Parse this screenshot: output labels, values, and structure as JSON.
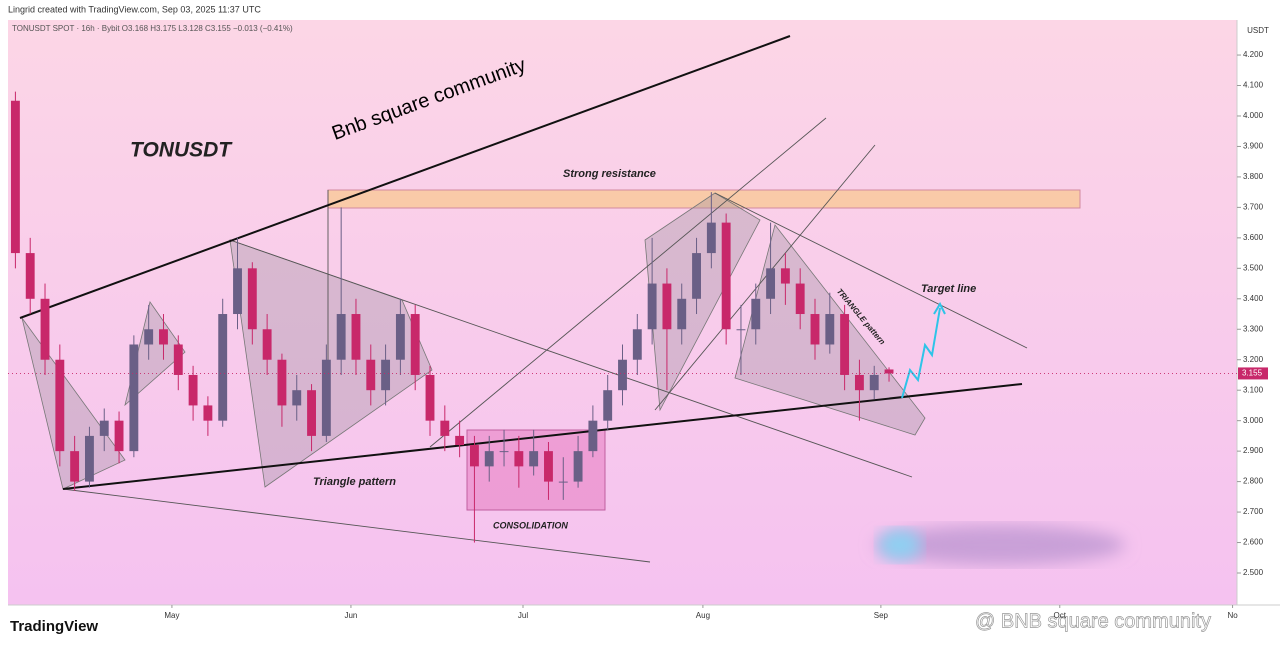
{
  "header": "Lingrid created with TradingView.com, Sep 03, 2025 11:37 UTC",
  "legend": "TONUSDT SPOT · 16h · Bybit  O3.168  H3.175  L3.128  C3.155  −0.013 (−0.41%)",
  "currency": "USDT",
  "logo": "TradingView",
  "watermark": "@ BNB square community",
  "chart_data": {
    "type": "candlestick",
    "title": "TONUSDT",
    "annotations": {
      "watermark": "Bnb square community",
      "resistance": "Strong resistance",
      "triangle": "Triangle pattern",
      "consolidation": "CONSOLIDATION",
      "triangle2": "TRIANGLE pattern",
      "target": "Target line"
    },
    "categories": [
      null,
      null,
      null,
      null,
      null,
      null,
      null,
      null,
      null,
      null,
      null,
      null,
      null,
      null,
      null,
      null,
      null,
      null,
      null,
      null,
      null,
      null,
      null,
      null,
      null,
      null,
      null,
      null,
      null,
      null,
      null,
      null,
      null,
      null,
      null,
      null,
      null,
      null,
      null,
      null,
      null,
      null,
      null,
      null,
      null,
      null,
      null,
      null,
      null,
      null,
      null,
      null,
      null,
      null,
      null,
      null,
      null,
      null,
      null,
      null
    ],
    "candles": [
      [
        4.05,
        4.08,
        3.5,
        3.55
      ],
      [
        3.55,
        3.6,
        3.35,
        3.4
      ],
      [
        3.4,
        3.45,
        3.15,
        3.2
      ],
      [
        3.2,
        3.25,
        2.85,
        2.9
      ],
      [
        2.9,
        2.95,
        2.77,
        2.8
      ],
      [
        2.8,
        2.98,
        2.78,
        2.95
      ],
      [
        2.95,
        3.04,
        2.9,
        3.0
      ],
      [
        3.0,
        3.03,
        2.86,
        2.9
      ],
      [
        2.9,
        3.28,
        2.88,
        3.25
      ],
      [
        3.25,
        3.38,
        3.2,
        3.3
      ],
      [
        3.3,
        3.35,
        3.2,
        3.25
      ],
      [
        3.25,
        3.28,
        3.1,
        3.15
      ],
      [
        3.15,
        3.18,
        3.0,
        3.05
      ],
      [
        3.05,
        3.08,
        2.95,
        3.0
      ],
      [
        3.0,
        3.4,
        2.98,
        3.35
      ],
      [
        3.35,
        3.6,
        3.3,
        3.5
      ],
      [
        3.5,
        3.52,
        3.25,
        3.3
      ],
      [
        3.3,
        3.35,
        3.15,
        3.2
      ],
      [
        3.2,
        3.22,
        2.98,
        3.05
      ],
      [
        3.05,
        3.15,
        3.0,
        3.1
      ],
      [
        3.1,
        3.12,
        2.9,
        2.95
      ],
      [
        2.95,
        3.25,
        2.93,
        3.2
      ],
      [
        3.2,
        3.7,
        3.15,
        3.35
      ],
      [
        3.35,
        3.4,
        3.15,
        3.2
      ],
      [
        3.2,
        3.25,
        3.05,
        3.1
      ],
      [
        3.1,
        3.25,
        3.05,
        3.2
      ],
      [
        3.2,
        3.4,
        3.15,
        3.35
      ],
      [
        3.35,
        3.38,
        3.1,
        3.15
      ],
      [
        3.15,
        3.18,
        2.95,
        3.0
      ],
      [
        3.0,
        3.05,
        2.9,
        2.95
      ],
      [
        2.95,
        3.0,
        2.88,
        2.92
      ],
      [
        2.92,
        2.95,
        2.6,
        2.85
      ],
      [
        2.85,
        2.95,
        2.8,
        2.9
      ],
      [
        2.9,
        2.97,
        2.85,
        2.9
      ],
      [
        2.9,
        2.95,
        2.78,
        2.85
      ],
      [
        2.85,
        2.97,
        2.82,
        2.9
      ],
      [
        2.9,
        2.93,
        2.74,
        2.8
      ],
      [
        2.8,
        2.88,
        2.74,
        2.8
      ],
      [
        2.8,
        2.95,
        2.78,
        2.9
      ],
      [
        2.9,
        3.05,
        2.88,
        3.0
      ],
      [
        3.0,
        3.15,
        2.97,
        3.1
      ],
      [
        3.1,
        3.25,
        3.05,
        3.2
      ],
      [
        3.2,
        3.35,
        3.15,
        3.3
      ],
      [
        3.3,
        3.6,
        3.25,
        3.45
      ],
      [
        3.45,
        3.5,
        3.1,
        3.3
      ],
      [
        3.3,
        3.45,
        3.25,
        3.4
      ],
      [
        3.4,
        3.6,
        3.35,
        3.55
      ],
      [
        3.55,
        3.75,
        3.5,
        3.65
      ],
      [
        3.65,
        3.68,
        3.25,
        3.3
      ],
      [
        3.3,
        3.38,
        3.15,
        3.3
      ],
      [
        3.3,
        3.45,
        3.25,
        3.4
      ],
      [
        3.4,
        3.65,
        3.35,
        3.5
      ],
      [
        3.5,
        3.55,
        3.38,
        3.45
      ],
      [
        3.45,
        3.5,
        3.3,
        3.35
      ],
      [
        3.35,
        3.4,
        3.2,
        3.25
      ],
      [
        3.25,
        3.42,
        3.22,
        3.35
      ],
      [
        3.35,
        3.38,
        3.1,
        3.15
      ],
      [
        3.15,
        3.2,
        3.0,
        3.1
      ],
      [
        3.1,
        3.18,
        3.07,
        3.15
      ],
      [
        3.168,
        3.175,
        3.128,
        3.155
      ]
    ],
    "up_color": "#6a5f86",
    "down_color": "#c8286a",
    "xlim": [
      0,
      83
    ],
    "xticks": [
      {
        "value": 11.07,
        "label": "May"
      },
      {
        "value": 23.16,
        "label": "Jun"
      },
      {
        "value": 34.78,
        "label": "Jul"
      },
      {
        "value": 46.93,
        "label": "Aug"
      },
      {
        "value": 58.95,
        "label": "Sep"
      },
      {
        "value": 71.03,
        "label": "Oct"
      },
      {
        "value": 82.7,
        "label": "No"
      }
    ],
    "ylim": [
      2.395,
      4.315
    ],
    "yticks": [
      {
        "value": 2.5,
        "label": "2.500"
      },
      {
        "value": 2.6,
        "label": "2.600"
      },
      {
        "value": 2.7,
        "label": "2.700"
      },
      {
        "value": 2.8,
        "label": "2.800"
      },
      {
        "value": 2.9,
        "label": "2.900"
      },
      {
        "value": 3.0,
        "label": "3.000"
      },
      {
        "value": 3.1,
        "label": "3.100"
      },
      {
        "value": 3.2,
        "label": "3.200"
      },
      {
        "value": 3.3,
        "label": "3.300"
      },
      {
        "value": 3.4,
        "label": "3.400"
      },
      {
        "value": 3.5,
        "label": "3.500"
      },
      {
        "value": 3.6,
        "label": "3.600"
      },
      {
        "value": 3.7,
        "label": "3.700"
      },
      {
        "value": 3.8,
        "label": "3.800"
      },
      {
        "value": 3.9,
        "label": "3.900"
      },
      {
        "value": 4.0,
        "label": "4.000"
      },
      {
        "value": 4.1,
        "label": "4.100"
      },
      {
        "value": 4.2,
        "label": "4.200"
      }
    ],
    "last_price": {
      "value": 3.155,
      "label": "3.155"
    }
  }
}
